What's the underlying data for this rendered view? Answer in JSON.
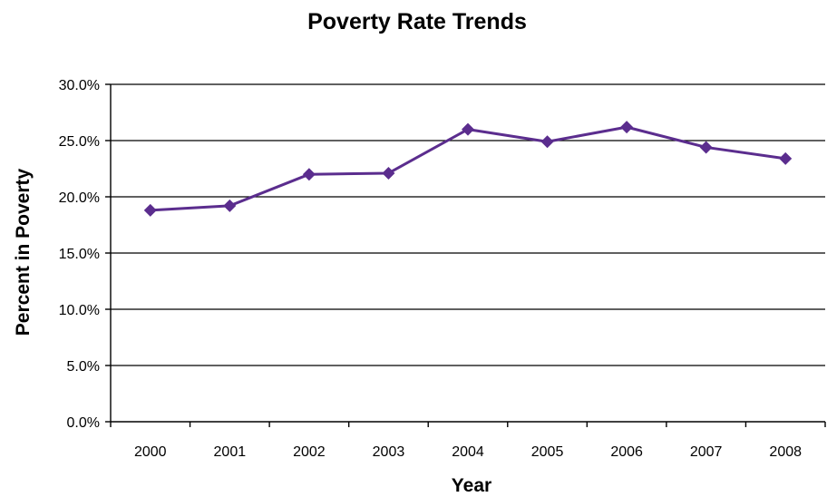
{
  "chart_data": {
    "type": "line",
    "title": "Poverty Rate Trends",
    "xlabel": "Year",
    "ylabel": "Percent in Poverty",
    "categories": [
      "2000",
      "2001",
      "2002",
      "2003",
      "2004",
      "2005",
      "2006",
      "2007",
      "2008"
    ],
    "series": [
      {
        "values": [
          18.8,
          19.2,
          22.0,
          22.1,
          26.0,
          24.9,
          26.2,
          24.4,
          23.4
        ]
      }
    ],
    "ylim": [
      0,
      30
    ],
    "yticks": [
      0,
      5,
      10,
      15,
      20,
      25,
      30
    ],
    "ytick_labels": [
      "0.0%",
      "5.0%",
      "10.0%",
      "15.0%",
      "20.0%",
      "25.0%",
      "30.0%"
    ],
    "grid": true,
    "marker": "diamond",
    "colors": {
      "series": "#5b2d8e"
    }
  }
}
